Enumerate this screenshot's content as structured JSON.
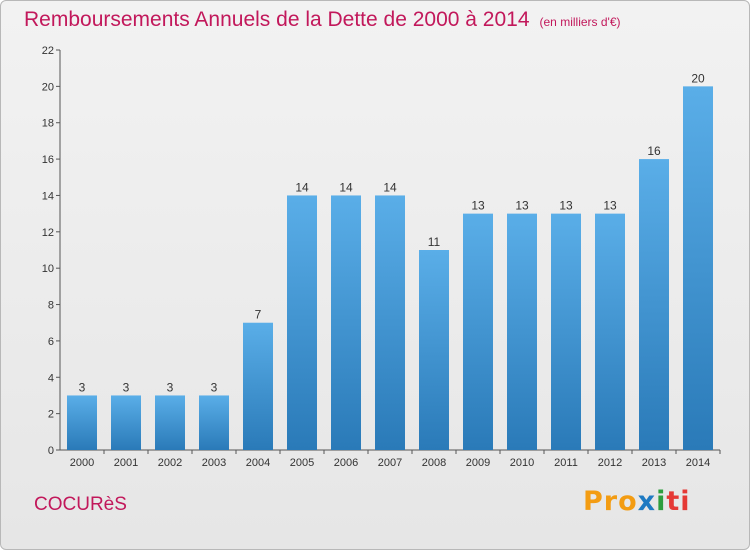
{
  "header": {
    "title": "Remboursements Annuels de la Dette de 2000 à 2014",
    "unit": "(en milliers d'€)"
  },
  "commune": "COCURèS",
  "brand": {
    "p1": "Pro",
    "p2": "x",
    "p3": "i",
    "p4": "ti"
  },
  "colors": {
    "title": "#c2185b",
    "bar_top": "#5aaee8",
    "bar_bottom": "#2a7ab8"
  },
  "chart_data": {
    "type": "bar",
    "title": "Remboursements Annuels de la Dette de 2000 à 2014",
    "subtitle": "(en milliers d'€)",
    "categories": [
      "2000",
      "2001",
      "2002",
      "2003",
      "2004",
      "2005",
      "2006",
      "2007",
      "2008",
      "2009",
      "2010",
      "2011",
      "2012",
      "2013",
      "2014"
    ],
    "values": [
      3,
      3,
      3,
      3,
      7,
      14,
      14,
      14,
      11,
      13,
      13,
      13,
      13,
      16,
      20
    ],
    "ylim": [
      0,
      22
    ],
    "yticks": [
      0,
      2,
      4,
      6,
      8,
      10,
      12,
      14,
      16,
      18,
      20,
      22
    ],
    "grid": false,
    "data_labels": true
  }
}
